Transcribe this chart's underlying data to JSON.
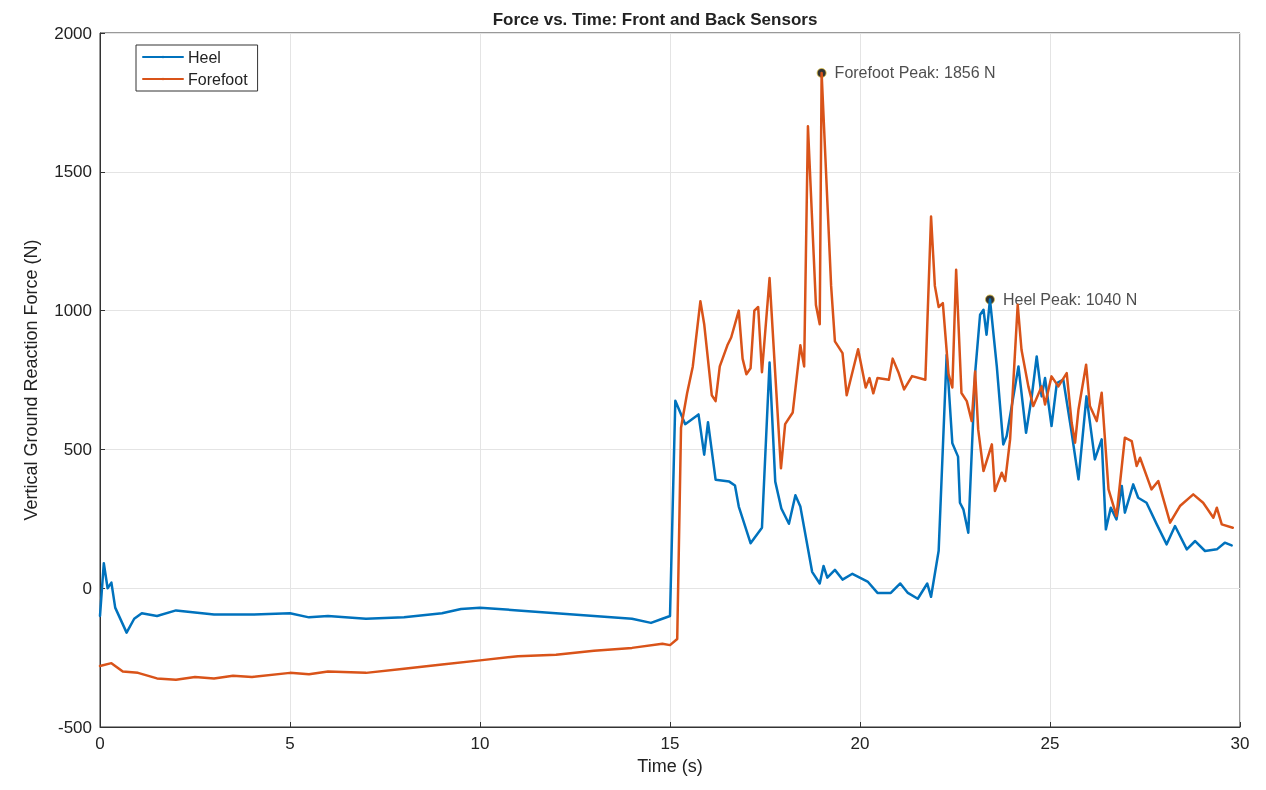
{
  "chart_data": {
    "type": "line",
    "title": "Force vs. Time: Front and Back Sensors",
    "xlabel": "Time (s)",
    "ylabel": "Vertical Ground Reaction Force (N)",
    "xlim": [
      0,
      30
    ],
    "xticks": [
      0,
      5,
      10,
      15,
      20,
      25,
      30
    ],
    "ylim": [
      -500,
      2000
    ],
    "yticks": [
      -500,
      0,
      500,
      1000,
      1500,
      2000
    ],
    "grid": true,
    "legend": "top left",
    "marker": "none",
    "line_style": "solid",
    "series": [
      {
        "name": "Heel",
        "color": "#0072bd",
        "x": [
          0,
          0.1,
          0.2,
          0.3,
          0.4,
          0.7,
          0.9,
          1.1,
          1.5,
          2,
          3,
          4,
          5,
          5.5,
          6,
          7,
          8,
          9,
          9.5,
          10,
          11,
          12,
          13,
          14,
          14.5,
          14.8,
          15.0,
          15.14,
          15.4,
          15.75,
          15.9,
          16.0,
          16.2,
          16.56,
          16.71,
          16.81,
          17.12,
          17.42,
          17.62,
          17.77,
          17.93,
          18.13,
          18.3,
          18.43,
          18.74,
          18.94,
          19.04,
          19.14,
          19.34,
          19.54,
          19.8,
          20.2,
          20.46,
          20.81,
          21.06,
          21.26,
          21.52,
          21.77,
          21.87,
          22.07,
          22.28,
          22.43,
          22.58,
          22.63,
          22.72,
          22.85,
          23.03,
          23.16,
          23.25,
          23.33,
          23.42,
          23.6,
          23.77,
          23.86,
          24.17,
          24.37,
          24.52,
          24.65,
          24.78,
          24.87,
          25.04,
          25.18,
          25.35,
          25.57,
          25.75,
          25.96,
          26.18,
          26.36,
          26.47,
          26.6,
          26.75,
          26.89,
          26.97,
          27.19,
          27.32,
          27.54,
          27.81,
          28.07,
          28.29,
          28.6,
          28.82,
          29.08,
          29.39,
          29.6,
          29.78
        ],
        "values": [
          -100,
          90,
          0,
          20,
          -70,
          -160,
          -110,
          -90,
          -100,
          -80,
          -95,
          -95,
          -90,
          -105,
          -100,
          -110,
          -105,
          -90,
          -75,
          -70,
          -80,
          -90,
          -100,
          -110,
          -125,
          -110,
          -100,
          675,
          591,
          626,
          481,
          598,
          391,
          384,
          370,
          294,
          162,
          218,
          813,
          384,
          287,
          232,
          335,
          294,
          59,
          17,
          80,
          38,
          66,
          31,
          52,
          24,
          -17,
          -17,
          17,
          -17,
          -38,
          17,
          -31,
          135,
          840,
          522,
          474,
          308,
          284,
          200,
          775,
          985,
          1003,
          913,
          1040,
          799,
          518,
          548,
          799,
          560,
          691,
          835,
          691,
          757,
          584,
          739,
          751,
          560,
          392,
          691,
          464,
          536,
          212,
          290,
          248,
          368,
          272,
          374,
          326,
          308,
          230,
          158,
          224,
          140,
          170,
          134,
          140,
          164,
          154
        ]
      },
      {
        "name": "Forefoot",
        "color": "#d95319",
        "x": [
          0,
          0.3,
          0.6,
          1,
          1.5,
          2,
          2.5,
          3,
          3.5,
          4,
          5,
          5.5,
          6,
          7,
          8,
          9,
          10,
          11,
          12,
          13,
          14,
          14.8,
          15.0,
          15.19,
          15.29,
          15.45,
          15.6,
          15.8,
          15.9,
          16.1,
          16.2,
          16.31,
          16.51,
          16.61,
          16.81,
          16.91,
          17.01,
          17.12,
          17.22,
          17.32,
          17.42,
          17.62,
          17.77,
          17.92,
          18.03,
          18.23,
          18.43,
          18.53,
          18.63,
          18.84,
          18.94,
          18.99,
          19.24,
          19.34,
          19.54,
          19.65,
          19.95,
          20.15,
          20.25,
          20.35,
          20.46,
          20.76,
          20.86,
          21.01,
          21.16,
          21.37,
          21.72,
          21.87,
          21.97,
          22.07,
          22.18,
          22.33,
          22.43,
          22.53,
          22.67,
          22.81,
          22.94,
          23.03,
          23.11,
          23.25,
          23.47,
          23.55,
          23.73,
          23.82,
          23.95,
          24.15,
          24.25,
          24.43,
          24.56,
          24.78,
          24.87,
          25.04,
          25.22,
          25.44,
          25.57,
          25.66,
          25.75,
          25.95,
          26.05,
          26.23,
          26.36,
          26.54,
          26.75,
          26.97,
          27.15,
          27.28,
          27.37,
          27.67,
          27.85,
          28.16,
          28.42,
          28.77,
          29.03,
          29.3,
          29.39,
          29.52,
          29.81
        ],
        "values": [
          -280,
          -270,
          -300,
          -305,
          -325,
          -330,
          -320,
          -325,
          -315,
          -320,
          -305,
          -310,
          -300,
          -305,
          -290,
          -275,
          -260,
          -245,
          -240,
          -225,
          -215,
          -200,
          -205,
          -183,
          578,
          702,
          799,
          1034,
          951,
          695,
          674,
          799,
          875,
          903,
          1000,
          827,
          771,
          792,
          1000,
          1013,
          778,
          1117,
          771,
          432,
          591,
          633,
          875,
          799,
          1664,
          1020,
          951,
          1856,
          1089,
          889,
          847,
          695,
          861,
          723,
          757,
          702,
          757,
          751,
          827,
          778,
          716,
          764,
          751,
          1339,
          1089,
          1013,
          1027,
          771,
          723,
          1147,
          703,
          674,
          602,
          781,
          572,
          422,
          518,
          350,
          416,
          386,
          536,
          1021,
          859,
          727,
          656,
          727,
          662,
          763,
          727,
          775,
          596,
          524,
          644,
          805,
          656,
          602,
          704,
          356,
          260,
          542,
          530,
          440,
          470,
          356,
          386,
          236,
          296,
          338,
          308,
          254,
          290,
          230,
          218
        ]
      }
    ],
    "annotations": [
      {
        "text": "Forefoot Peak: 1856 N",
        "x": 18.99,
        "y": 1856
      },
      {
        "text": "Heel Peak: 1040 N",
        "x": 23.42,
        "y": 1040
      }
    ]
  }
}
